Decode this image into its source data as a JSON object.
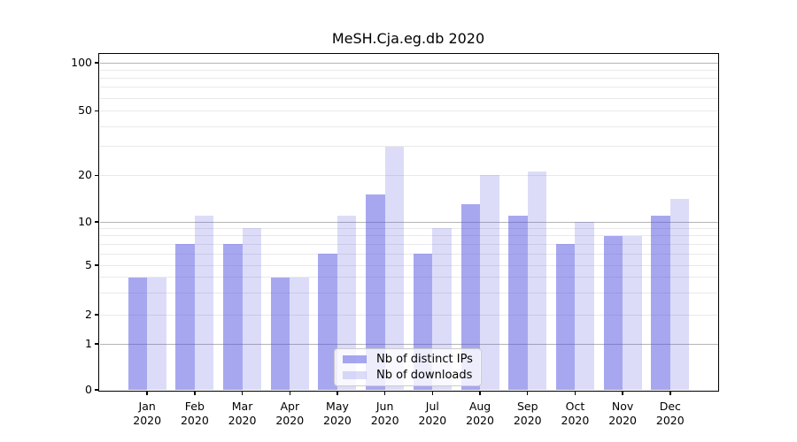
{
  "chart_data": {
    "type": "bar",
    "title": "MeSH.Cja.eg.db 2020",
    "categories": [
      "Jan",
      "Feb",
      "Mar",
      "Apr",
      "May",
      "Jun",
      "Jul",
      "Aug",
      "Sep",
      "Oct",
      "Nov",
      "Dec"
    ],
    "category_year": "2020",
    "series": [
      {
        "name": "Nb of distinct IPs",
        "color": "#5050E1",
        "alpha": 0.5,
        "values": [
          4,
          7,
          7,
          4,
          6,
          15,
          6,
          13,
          11,
          7,
          8,
          11
        ]
      },
      {
        "name": "Nb of downloads",
        "color": "#5050E1",
        "alpha": 0.2,
        "values": [
          4,
          11,
          9,
          4,
          11,
          30,
          9,
          20,
          21,
          10,
          8,
          14
        ]
      }
    ],
    "y_axis": {
      "tick_labels": [
        0,
        1,
        2,
        5,
        10,
        20,
        50,
        100
      ],
      "major_gridlines": [
        1,
        10,
        100
      ],
      "minor_gridlines": [
        2,
        5,
        20,
        50,
        3,
        4,
        6,
        7,
        8,
        9,
        30,
        40,
        60,
        70,
        80,
        90
      ],
      "scale": "log1p",
      "ylim": [
        0,
        113
      ]
    },
    "colors": {
      "major_grid": "#b4b4b4",
      "minor_grid": "#e9e9e9",
      "axis": "#000000",
      "text": "#000000",
      "legend_border": "#cccccc"
    },
    "legend": {
      "position": "lower center"
    },
    "grid": true
  }
}
